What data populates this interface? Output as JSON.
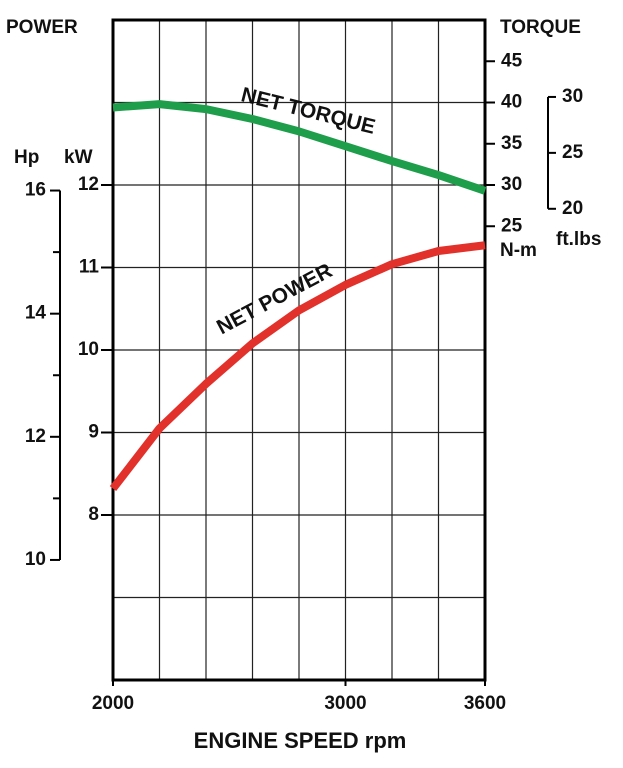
{
  "chart_data": {
    "type": "line",
    "title_left": "POWER",
    "title_right": "TORQUE",
    "x_label": "ENGINE SPEED rpm",
    "hp_label": "Hp",
    "kw_label": "kW",
    "nm_label": "N-m",
    "ftlb_label": "ft.lbs",
    "x": [
      2000,
      2200,
      2400,
      2600,
      2800,
      3000,
      3200,
      3400,
      3600
    ],
    "xlim": [
      2000,
      3600
    ],
    "xticks": [
      2000,
      3000,
      3600
    ],
    "xgrid": [
      2200,
      2400,
      2600,
      2800,
      3000,
      3200,
      3400
    ],
    "ylim": [
      6,
      14
    ],
    "yticks": [
      8,
      9,
      10,
      11,
      12
    ],
    "ygrid": [
      7,
      8,
      9,
      10,
      11,
      12,
      13
    ],
    "y2lim": [
      -30,
      50
    ],
    "y2ticks": [
      25,
      30,
      35,
      40,
      45
    ],
    "hp_lim": [
      8.05,
      18.77
    ],
    "hp_ticks": [
      10,
      12,
      14,
      16
    ],
    "hp_minor_ticks": [
      11,
      13,
      15
    ],
    "ftlb_lim": [
      -22.13,
      36.88
    ],
    "ftlb_ticks": [
      20,
      25,
      30
    ],
    "series": [
      {
        "name": "NET TORQUE",
        "color": "#1e9e4a",
        "axis": "y2",
        "values": [
          39.4,
          39.8,
          39.2,
          38.0,
          36.5,
          34.7,
          32.9,
          31.2,
          29.3
        ]
      },
      {
        "name": "NET POWER",
        "color": "#e2302a",
        "values": [
          8.32,
          9.05,
          9.59,
          10.08,
          10.48,
          10.79,
          11.04,
          11.2,
          11.27
        ]
      }
    ]
  }
}
